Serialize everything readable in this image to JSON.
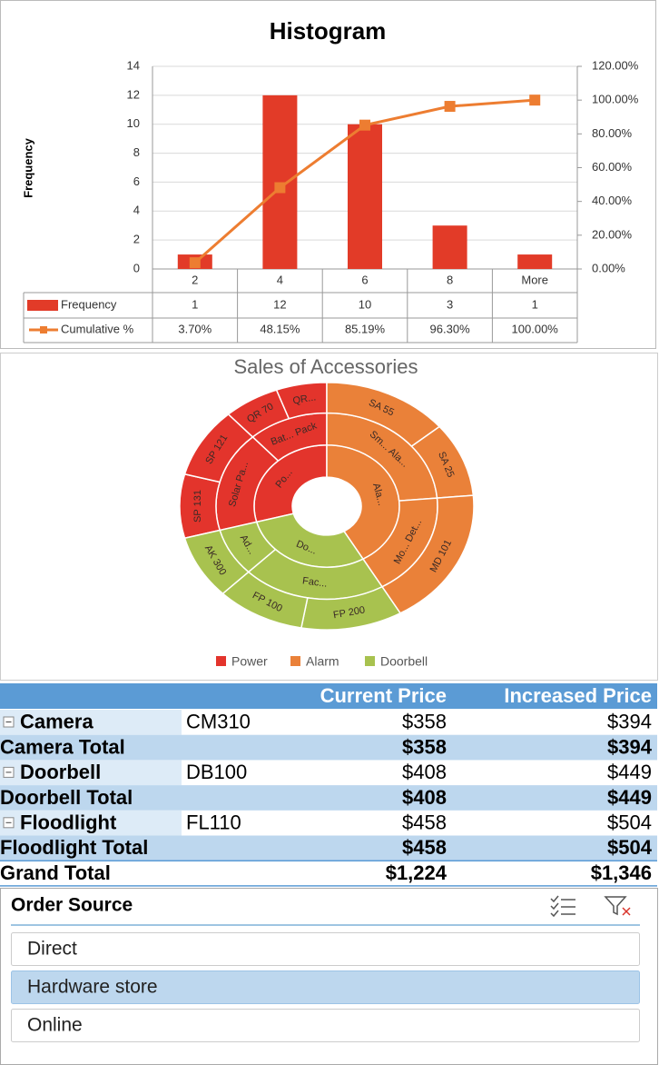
{
  "chart_data": [
    {
      "type": "bar",
      "title": "Histogram",
      "ylabel": "Frequency",
      "categories": [
        "2",
        "4",
        "6",
        "8",
        "More"
      ],
      "series": [
        {
          "name": "Frequency",
          "color": "#e23b28",
          "values": [
            1,
            12,
            10,
            3,
            1
          ]
        },
        {
          "name": "Cumulative %",
          "type": "line",
          "axis": "y2",
          "color": "#ed7d31",
          "values": [
            3.7,
            48.15,
            85.19,
            96.3,
            100.0
          ],
          "value_labels": [
            "3.70%",
            "48.15%",
            "85.19%",
            "96.30%",
            "100.00%"
          ]
        }
      ],
      "ylim": [
        0,
        14
      ],
      "yticks": [
        0,
        2,
        4,
        6,
        8,
        10,
        12,
        14
      ],
      "y2lim": [
        0,
        120
      ],
      "y2ticks": [
        {
          "value": 0,
          "label": "0.00%"
        },
        {
          "value": 20,
          "label": "20.00%"
        },
        {
          "value": 40,
          "label": "40.00%"
        },
        {
          "value": 60,
          "label": "60.00%"
        },
        {
          "value": 80,
          "label": "80.00%"
        },
        {
          "value": 100,
          "label": "100.00%"
        },
        {
          "value": 120,
          "label": "120.00%"
        }
      ],
      "grid": true,
      "data_table": true
    },
    {
      "type": "sunburst",
      "title": "Sales of Accessories",
      "legend": "bottom",
      "nodes": [
        {
          "name": "Power",
          "label": "Po...",
          "color": "#e3342c",
          "children": [
            {
              "label": "Solar Pa...",
              "children": [
                {
                  "label": "SP 131",
                  "value": 30
                },
                {
                  "label": "SP 121",
                  "value": 33
                }
              ]
            },
            {
              "label": "Bat... Pack",
              "children": [
                {
                  "label": "QR 70",
                  "value": 22
                },
                {
                  "label": "QR...",
                  "value": 20
                }
              ]
            }
          ]
        },
        {
          "name": "Alarm",
          "label": "Ala...",
          "color": "#ea8139",
          "children": [
            {
              "label": "Sm... Ala...",
              "children": [
                {
                  "label": "SA 55",
                  "value": 50
                },
                {
                  "label": "SA 25",
                  "value": 35
                }
              ]
            },
            {
              "label": "Mo... Det...",
              "children": [
                {
                  "label": "MD 101",
                  "value": 65
                }
              ]
            }
          ]
        },
        {
          "name": "Doorbell",
          "label": "Do...",
          "color": "#a8c24f",
          "children": [
            {
              "label": "Fac...",
              "children": [
                {
                  "label": "FP 200",
                  "value": 40
                },
                {
                  "label": "FP 100",
                  "value": 35
                }
              ]
            },
            {
              "label": "Ad...",
              "children": [
                {
                  "label": "AK 300",
                  "value": 30
                }
              ]
            }
          ]
        }
      ]
    }
  ],
  "pivot": {
    "headers": [
      "Current Price",
      "Increased Price"
    ],
    "groups": [
      {
        "label": "Camera",
        "code": "CM310",
        "current": "$358",
        "increased": "$394",
        "total_label": "Camera Total",
        "total_current": "$358",
        "total_increased": "$394"
      },
      {
        "label": "Doorbell",
        "code": "DB100",
        "current": "$408",
        "increased": "$449",
        "total_label": "Doorbell Total",
        "total_current": "$408",
        "total_increased": "$449"
      },
      {
        "label": "Floodlight",
        "code": "FL110",
        "current": "$458",
        "increased": "$504",
        "total_label": "Floodlight Total",
        "total_current": "$458",
        "total_increased": "$504"
      }
    ],
    "grand_total": {
      "label": "Grand Total",
      "current": "$1,224",
      "increased": "$1,346"
    }
  },
  "slicer": {
    "title": "Order Source",
    "items": [
      "Direct",
      "Hardware store",
      "Online"
    ],
    "selected": [
      1
    ]
  }
}
